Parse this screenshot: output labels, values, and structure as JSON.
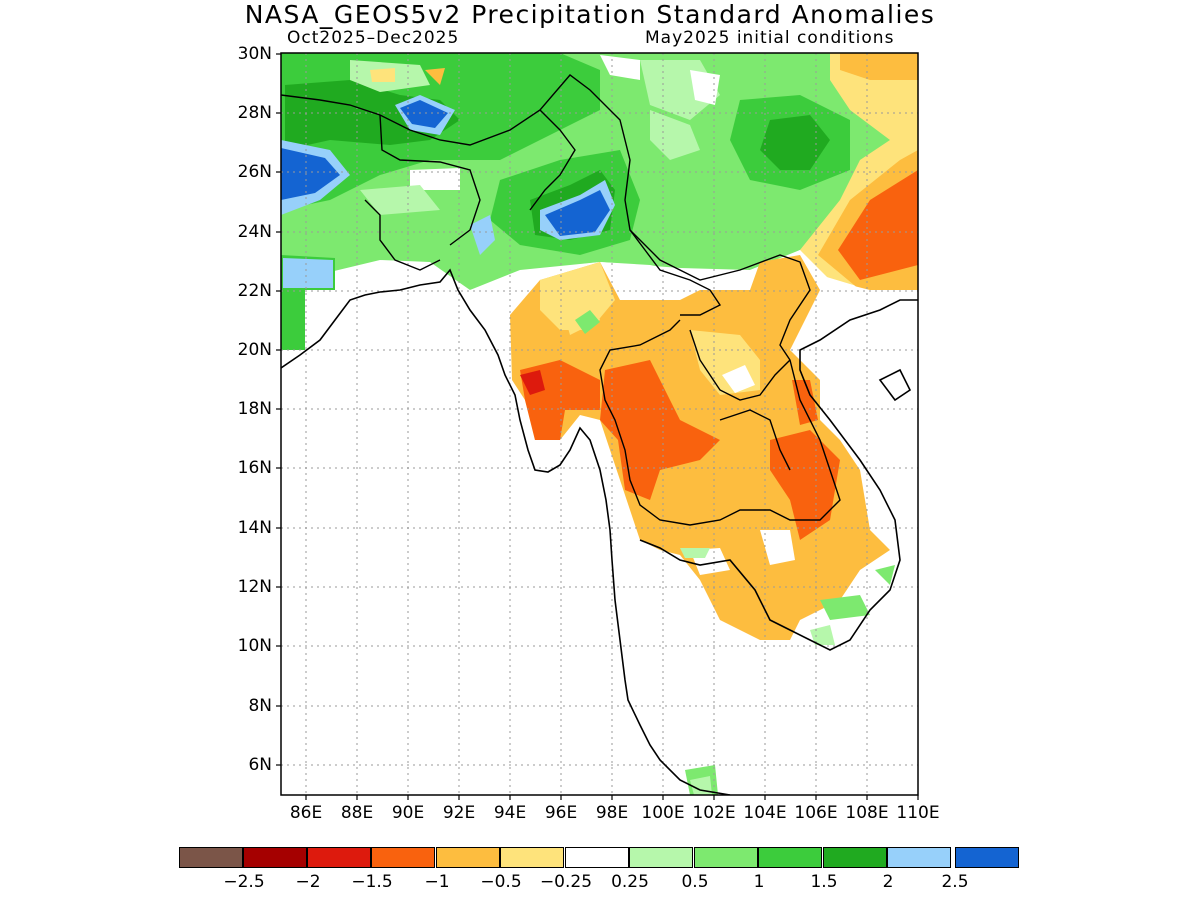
{
  "title": "NASA_GEOS5v2 Precipitation Standard Anomalies",
  "subtitle_left": "Oct2025–Dec2025",
  "subtitle_right": "May2025 initial conditions",
  "lat_labels": [
    "30N",
    "28N",
    "26N",
    "24N",
    "22N",
    "20N",
    "18N",
    "16N",
    "14N",
    "12N",
    "10N",
    "8N",
    "6N"
  ],
  "lon_labels": [
    "86E",
    "88E",
    "90E",
    "92E",
    "94E",
    "96E",
    "98E",
    "100E",
    "102E",
    "104E",
    "106E",
    "108E",
    "110E"
  ],
  "colorbar": {
    "colors": [
      "#7b5548",
      "#a50000",
      "#dd1a0d",
      "#f9620e",
      "#fdbd3f",
      "#fee37b",
      "#ffffff",
      "#b6f7ab",
      "#7de96f",
      "#3ccc3c",
      "#20aa20",
      "#97d0fa",
      "#1464d2"
    ],
    "labels": [
      "−2.5",
      "−2",
      "−1.5",
      "−1",
      "−0.5",
      "−0.25",
      "0.25",
      "0.5",
      "1",
      "1.5",
      "2",
      "2.5"
    ]
  }
}
